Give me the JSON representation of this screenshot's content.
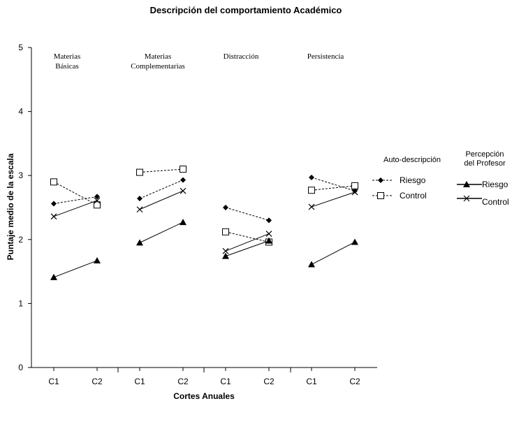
{
  "chart_data": {
    "type": "line",
    "title": "Descripción del comportamiento Académico",
    "xlabel": "Cortes Anuales",
    "ylabel": "Puntaje medio de la escala",
    "ylim": [
      0,
      5
    ],
    "yticks": [
      "0",
      "1",
      "2",
      "3",
      "4",
      "5"
    ],
    "grid": false,
    "categories": [
      "C1",
      "C2",
      "C1",
      "C2",
      "C1",
      "C2",
      "C1",
      "C2"
    ],
    "groups": [
      {
        "label_lines": [
          "Materias",
          "Básicas"
        ]
      },
      {
        "label_lines": [
          "Materias",
          "Complementarias"
        ]
      },
      {
        "label_lines": [
          "Distracción"
        ]
      },
      {
        "label_lines": [
          "Persistencia"
        ]
      }
    ],
    "legend_titles": {
      "self": "Auto-descripción",
      "teacher_lines": [
        "Percepción",
        "del Profesor"
      ]
    },
    "series": [
      {
        "name": "Riesgo",
        "legend": "self",
        "marker": "diamond",
        "line": "dashed",
        "values": [
          [
            2.56,
            2.67
          ],
          [
            2.64,
            2.93
          ],
          [
            2.5,
            2.3
          ],
          [
            2.97,
            2.76
          ]
        ]
      },
      {
        "name": "Control",
        "legend": "self",
        "marker": "square",
        "line": "dashed",
        "values": [
          [
            2.9,
            2.54
          ],
          [
            3.05,
            3.1
          ],
          [
            2.12,
            1.96
          ],
          [
            2.77,
            2.84
          ]
        ]
      },
      {
        "name": "Riesgo",
        "legend": "teacher",
        "marker": "triangle",
        "line": "solid",
        "values": [
          [
            1.41,
            1.67
          ],
          [
            1.95,
            2.27
          ],
          [
            1.74,
            1.98
          ],
          [
            1.61,
            1.96
          ]
        ]
      },
      {
        "name": "Control",
        "legend": "teacher",
        "marker": "x",
        "line": "solid",
        "values": [
          [
            2.36,
            2.61
          ],
          [
            2.47,
            2.76
          ],
          [
            1.82,
            2.09
          ],
          [
            2.51,
            2.74
          ]
        ]
      }
    ]
  }
}
